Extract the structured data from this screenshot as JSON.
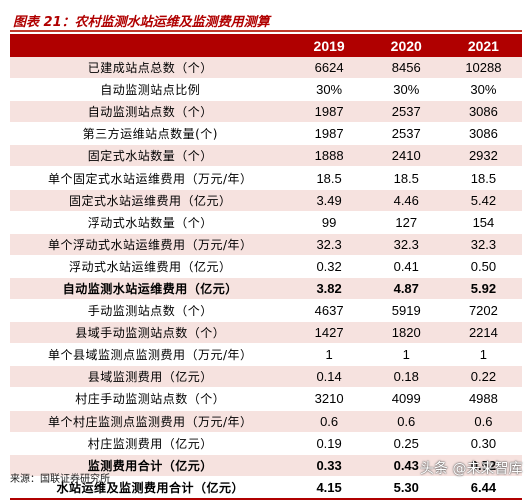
{
  "title": "图表 21：农村监测水站运维及监测费用测算",
  "columns": [
    "",
    "2019",
    "2020",
    "2021"
  ],
  "rows": [
    {
      "label": "已建成站点总数（个）",
      "v": [
        "6624",
        "8456",
        "10288"
      ],
      "bold": false
    },
    {
      "label": "自动监测站点比例",
      "v": [
        "30%",
        "30%",
        "30%"
      ],
      "bold": false
    },
    {
      "label": "自动监测站点数（个）",
      "v": [
        "1987",
        "2537",
        "3086"
      ],
      "bold": false
    },
    {
      "label": "第三方运维站点数量(个)",
      "v": [
        "1987",
        "2537",
        "3086"
      ],
      "bold": false
    },
    {
      "label": "固定式水站数量（个）",
      "v": [
        "1888",
        "2410",
        "2932"
      ],
      "bold": false
    },
    {
      "label": "单个固定式水站运维费用（万元/年）",
      "v": [
        "18.5",
        "18.5",
        "18.5"
      ],
      "bold": false
    },
    {
      "label": "固定式水站运维费用（亿元）",
      "v": [
        "3.49",
        "4.46",
        "5.42"
      ],
      "bold": false
    },
    {
      "label": "浮动式水站数量（个）",
      "v": [
        "99",
        "127",
        "154"
      ],
      "bold": false
    },
    {
      "label": "单个浮动式水站运维费用（万元/年）",
      "v": [
        "32.3",
        "32.3",
        "32.3"
      ],
      "bold": false
    },
    {
      "label": "浮动式水站运维费用（亿元）",
      "v": [
        "0.32",
        "0.41",
        "0.50"
      ],
      "bold": false
    },
    {
      "label": "自动监测水站运维费用（亿元）",
      "v": [
        "3.82",
        "4.87",
        "5.92"
      ],
      "bold": true
    },
    {
      "label": "手动监测站点数（个）",
      "v": [
        "4637",
        "5919",
        "7202"
      ],
      "bold": false
    },
    {
      "label": "县域手动监测站点数（个）",
      "v": [
        "1427",
        "1820",
        "2214"
      ],
      "bold": false
    },
    {
      "label": "单个县域监测点监测费用（万元/年）",
      "v": [
        "1",
        "1",
        "1"
      ],
      "bold": false
    },
    {
      "label": "县域监测费用（亿元）",
      "v": [
        "0.14",
        "0.18",
        "0.22"
      ],
      "bold": false
    },
    {
      "label": "村庄手动监测站点数（个）",
      "v": [
        "3210",
        "4099",
        "4988"
      ],
      "bold": false
    },
    {
      "label": "单个村庄监测点监测费用（万元/年）",
      "v": [
        "0.6",
        "0.6",
        "0.6"
      ],
      "bold": false
    },
    {
      "label": "村庄监测费用（亿元）",
      "v": [
        "0.19",
        "0.25",
        "0.30"
      ],
      "bold": false
    },
    {
      "label": "监测费用合计（亿元）",
      "v": [
        "0.33",
        "0.43",
        "0.52"
      ],
      "bold": true
    },
    {
      "label": "水站运维及监测费用合计（亿元）",
      "v": [
        "4.15",
        "5.30",
        "6.44"
      ],
      "bold": true
    }
  ],
  "footer": "来源：国联证券研究所",
  "watermark": "头条 @未来智库"
}
